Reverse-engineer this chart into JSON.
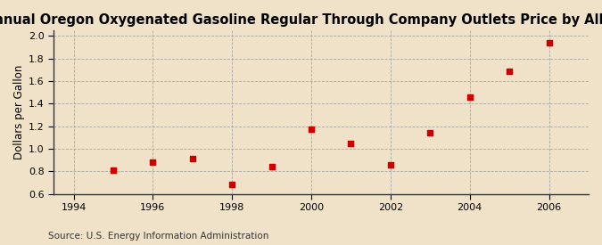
{
  "title": "Annual Oregon Oxygenated Gasoline Regular Through Company Outlets Price by All Sellers",
  "ylabel": "Dollars per Gallon",
  "source": "Source: U.S. Energy Information Administration",
  "background_color": "#f0e2c8",
  "plot_bg_color": "#f0e2c8",
  "grid_color": "#999999",
  "marker_color": "#cc0000",
  "x_data": [
    1995,
    1996,
    1997,
    1998,
    1999,
    2000,
    2001,
    2002,
    2003,
    2004,
    2005,
    2006
  ],
  "y_data": [
    0.81,
    0.88,
    0.91,
    0.68,
    0.84,
    1.17,
    1.05,
    0.86,
    1.14,
    1.46,
    1.69,
    1.94
  ],
  "xlim": [
    1993.5,
    2007
  ],
  "ylim": [
    0.6,
    2.05
  ],
  "xticks": [
    1994,
    1996,
    1998,
    2000,
    2002,
    2004,
    2006
  ],
  "yticks": [
    0.6,
    0.8,
    1.0,
    1.2,
    1.4,
    1.6,
    1.8,
    2.0
  ],
  "title_fontsize": 10.5,
  "label_fontsize": 8.5,
  "tick_fontsize": 8,
  "source_fontsize": 7.5
}
